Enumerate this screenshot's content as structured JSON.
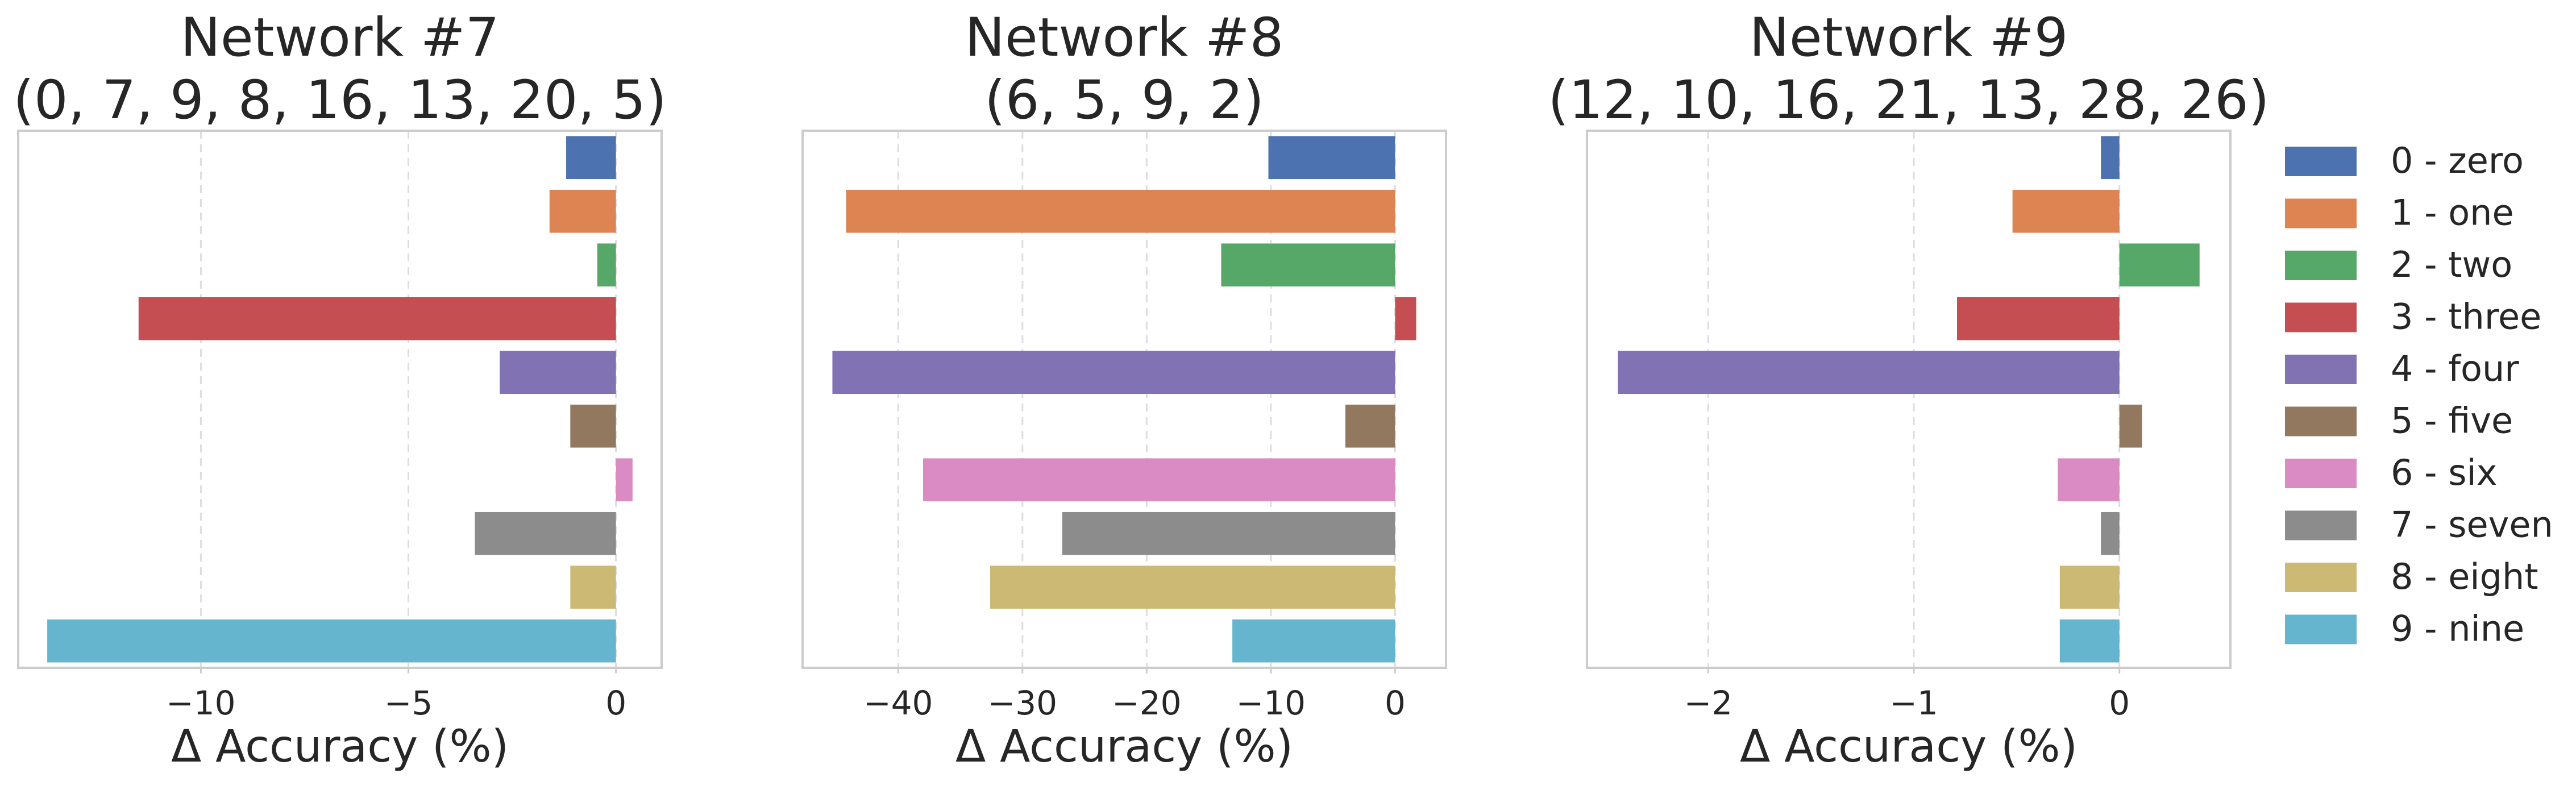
{
  "chart_data": [
    {
      "type": "bar",
      "orientation": "horizontal",
      "title": "Network #7\n(0, 7, 9, 8, 16, 13, 20, 5)",
      "xlabel": "Δ Accuracy (%)",
      "ylabel": "",
      "categories": [
        "0 - zero",
        "1 - one",
        "2 - two",
        "3 - three",
        "4 - four",
        "5 - five",
        "6 - six",
        "7 - seven",
        "8 - eight",
        "9 - nine"
      ],
      "values": [
        -1.2,
        -1.6,
        -0.45,
        -11.5,
        -2.8,
        -1.1,
        0.4,
        -3.4,
        -1.1,
        -13.7
      ],
      "xlim": [
        -14.4,
        1.1
      ],
      "xticks": [
        -10,
        -5,
        0
      ],
      "xticklabels": [
        "−10",
        "−5",
        "0"
      ],
      "grid": true
    },
    {
      "type": "bar",
      "orientation": "horizontal",
      "title": "Network #8\n(6, 5, 9, 2)",
      "xlabel": "Δ Accuracy (%)",
      "ylabel": "",
      "categories": [
        "0 - zero",
        "1 - one",
        "2 - two",
        "3 - three",
        "4 - four",
        "5 - five",
        "6 - six",
        "7 - seven",
        "8 - eight",
        "9 - nine"
      ],
      "values": [
        -10.2,
        -44.2,
        -14.0,
        1.7,
        -45.3,
        -4.0,
        -38.0,
        -26.8,
        -32.6,
        -13.1
      ],
      "xlim": [
        -47.7,
        4.1
      ],
      "xticks": [
        -40,
        -30,
        -20,
        -10,
        0
      ],
      "xticklabels": [
        "−40",
        "−30",
        "−20",
        "−10",
        "0"
      ],
      "grid": true
    },
    {
      "type": "bar",
      "orientation": "horizontal",
      "title": "Network #9\n(12, 10, 16, 21, 13, 28, 26)",
      "xlabel": "Δ Accuracy (%)",
      "ylabel": "",
      "categories": [
        "0 - zero",
        "1 - one",
        "2 - two",
        "3 - three",
        "4 - four",
        "5 - five",
        "6 - six",
        "7 - seven",
        "8 - eight",
        "9 - nine"
      ],
      "values": [
        -0.09,
        -0.52,
        0.39,
        -0.79,
        -2.44,
        0.11,
        -0.3,
        -0.09,
        -0.29,
        -0.29
      ],
      "xlim": [
        -2.59,
        0.54
      ],
      "xticks": [
        -2,
        -1,
        0
      ],
      "xticklabels": [
        "−2",
        "−1",
        "0"
      ],
      "grid": true
    }
  ],
  "legend": {
    "placement": "right",
    "entries": [
      {
        "label": "0 - zero",
        "color": "#4c72b0"
      },
      {
        "label": "1 - one",
        "color": "#dd8452"
      },
      {
        "label": "2 - two",
        "color": "#55a868"
      },
      {
        "label": "3 - three",
        "color": "#c44e52"
      },
      {
        "label": "4 - four",
        "color": "#8172b3"
      },
      {
        "label": "5 - five",
        "color": "#937860"
      },
      {
        "label": "6 - six",
        "color": "#da8bc3"
      },
      {
        "label": "7 - seven",
        "color": "#8c8c8c"
      },
      {
        "label": "8 - eight",
        "color": "#ccb974"
      },
      {
        "label": "9 - nine",
        "color": "#64b5cd"
      }
    ]
  }
}
